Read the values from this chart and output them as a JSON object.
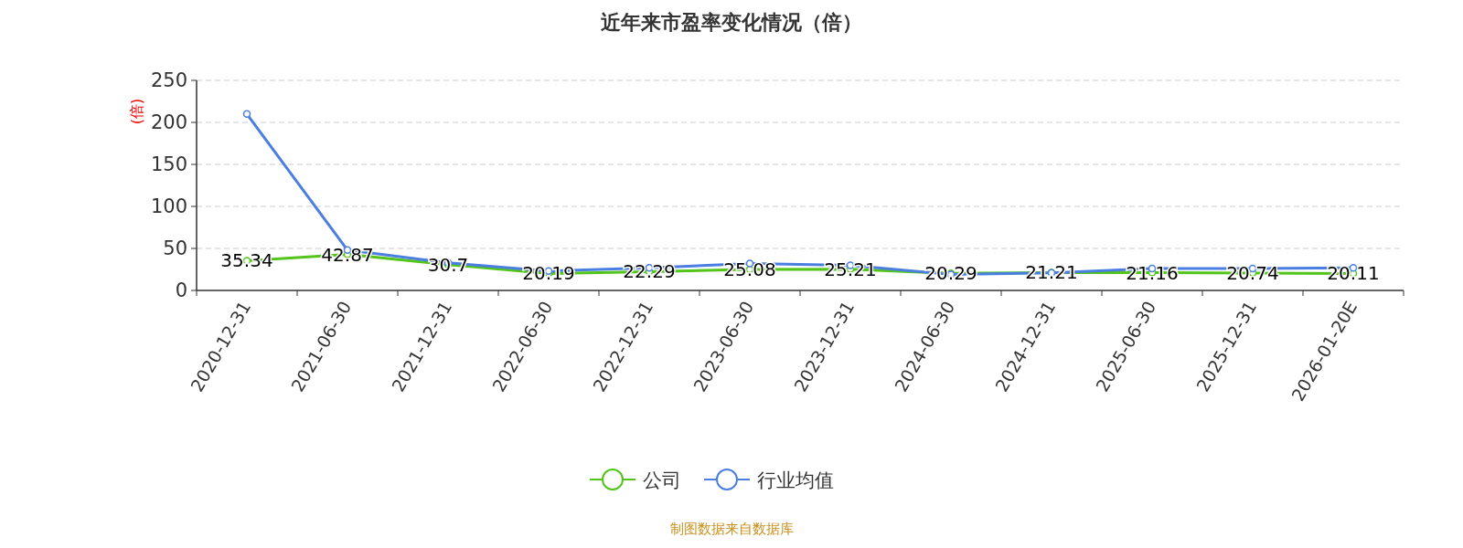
{
  "chart_data": {
    "type": "line",
    "title": "近年来市盈率变化情况（倍）",
    "ylabel": "(倍)",
    "categories": [
      "2020-12-31",
      "2021-06-30",
      "2021-12-31",
      "2022-06-30",
      "2022-12-31",
      "2023-06-30",
      "2023-12-31",
      "2024-06-30",
      "2024-12-31",
      "2025-06-30",
      "2025-12-31",
      "2026-01-20E"
    ],
    "series": [
      {
        "name": "公司",
        "color": "#52c41a",
        "data_labels": true,
        "values": [
          35.34,
          42.87,
          30.7,
          20.19,
          22.29,
          25.08,
          25.21,
          20.29,
          21.21,
          21.16,
          20.74,
          20.11
        ]
      },
      {
        "name": "行业均值",
        "color": "#4a7ee0",
        "values": [
          210,
          48,
          33,
          23,
          27,
          32,
          30,
          19,
          21,
          26,
          26,
          27
        ]
      }
    ],
    "ylim": [
      0,
      250
    ],
    "yticks": [
      0,
      50,
      100,
      150,
      200,
      250
    ],
    "grid": "y",
    "legend": "bottom",
    "marker": "circle",
    "line_style": "solid",
    "annotations": [
      "制图数据来自数据库"
    ]
  }
}
